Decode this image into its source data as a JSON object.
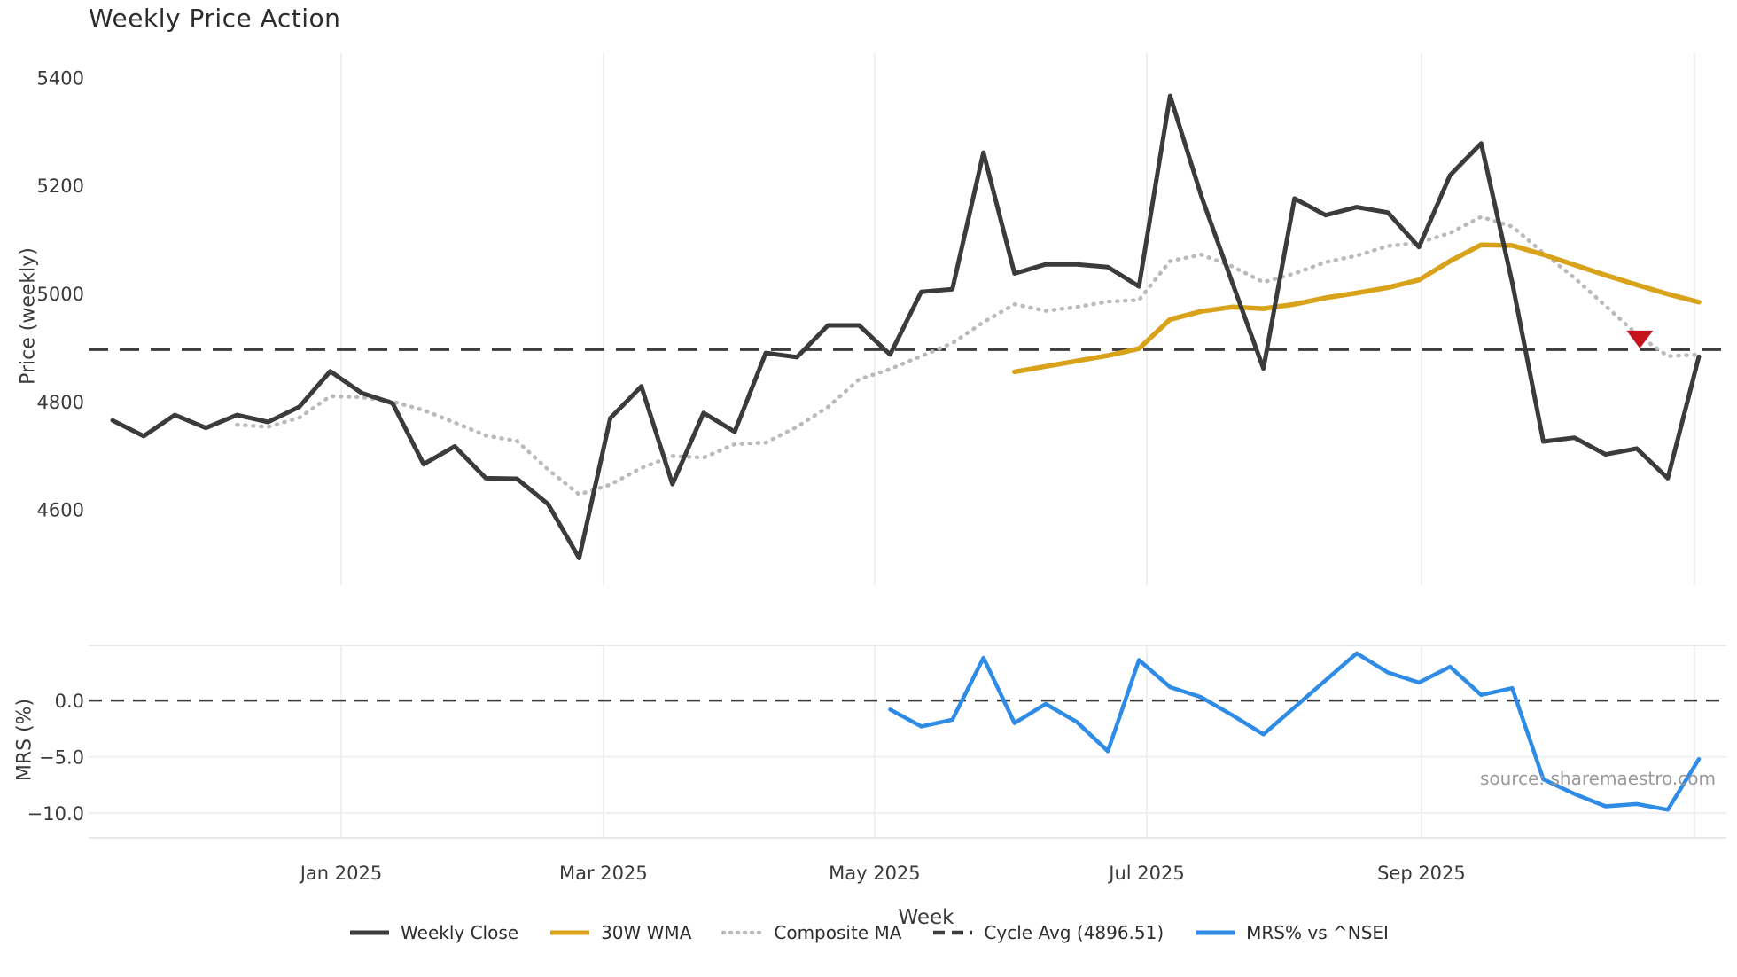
{
  "title": "Weekly Price Action",
  "axes": {
    "x_label": "Week",
    "price_y_label": "Price (weekly)",
    "mrs_y_label": "MRS (%)"
  },
  "source_credit": "source: sharemaestro.com",
  "colors": {
    "weekly_close": "#3b3b3b",
    "wma_30": "#d9a21b",
    "composite_ma": "#bababa",
    "cycle_avg": "#3d3d3d",
    "mrs_line": "#2e8be6",
    "signal_marker": "#c4151c",
    "gridline": "#f0f0f4",
    "panel_border": "#e7e7eb",
    "tick_text": "#3a3a3a",
    "muted_text": "#9a9a9a"
  },
  "legend": {
    "items": [
      {
        "label": "Weekly Close",
        "swatch": "solid",
        "color": "#3b3b3b"
      },
      {
        "label": "30W WMA",
        "swatch": "solid",
        "color": "#d9a21b"
      },
      {
        "label": "Composite MA",
        "swatch": "dotted",
        "color": "#bababa"
      },
      {
        "label": "Cycle Avg (4896.51)",
        "swatch": "dashed",
        "color": "#3d3d3d"
      },
      {
        "label": "MRS% vs ^NSEI",
        "swatch": "solid",
        "color": "#2e8be6"
      }
    ]
  },
  "chart_data": [
    {
      "type": "line",
      "panel": "price",
      "title": "Weekly Price Action",
      "xlabel": "Week",
      "ylabel": "Price (weekly)",
      "x_unit": "weekly index (Nov 2024 - Oct 2025)",
      "xtick_labels": [
        "Jan 2025",
        "Mar 2025",
        "May 2025",
        "Jul 2025",
        "Sep 2025"
      ],
      "xtick_weeks": [
        7.35,
        15.78,
        24.5,
        33.25,
        42.08
      ],
      "extra_gridline_week": 50.86,
      "ytick_values": [
        5400,
        5200,
        5000,
        4800,
        4600
      ],
      "ylim": [
        4460,
        5445
      ],
      "grid": "vertical-only",
      "legend_position": "bottom-center",
      "cycle_avg": 4896.51,
      "series": [
        {
          "name": "Weekly Close",
          "color": "#3b3b3b",
          "style": "solid",
          "values": [
            4765,
            4736,
            4775,
            4751,
            4775,
            4762,
            4790,
            4856,
            4816,
            4797,
            4684,
            4717,
            4658,
            4657,
            4610,
            4510,
            4769,
            4828,
            4647,
            4779,
            4744,
            4890,
            4882,
            4941,
            4941,
            4887,
            5003,
            5008,
            5261,
            5037,
            5054,
            5054,
            5049,
            5013,
            5366,
            5181,
            5020,
            4861,
            5176,
            5145,
            5160,
            5150,
            5086,
            5219,
            5278,
            5020,
            4726,
            4733,
            4702,
            4713,
            4658,
            4883
          ]
        },
        {
          "name": "30W WMA",
          "color": "#d9a21b",
          "style": "solid",
          "values": [
            null,
            null,
            null,
            null,
            null,
            null,
            null,
            null,
            null,
            null,
            null,
            null,
            null,
            null,
            null,
            null,
            null,
            null,
            null,
            null,
            null,
            null,
            null,
            null,
            null,
            null,
            null,
            null,
            null,
            4855,
            4865,
            4875,
            4885,
            4898,
            4952,
            4967,
            4975,
            4972,
            4980,
            4992,
            5001,
            5011,
            5025,
            5060,
            5090,
            5089,
            5072,
            5053,
            5034,
            5016,
            4999,
            4984
          ]
        },
        {
          "name": "Composite MA",
          "color": "#bababa",
          "style": "dotted",
          "values": [
            null,
            null,
            null,
            null,
            4757,
            4753,
            4770,
            4810,
            4808,
            4800,
            4784,
            4761,
            4737,
            4727,
            4674,
            4628,
            4646,
            4677,
            4699,
            4696,
            4721,
            4724,
            4753,
            4790,
            4841,
            4860,
            4884,
            4908,
            4947,
            4980,
            4968,
            4975,
            4985,
            4988,
            5060,
            5072,
            5050,
            5021,
            5037,
            5058,
            5070,
            5088,
            5094,
            5112,
            5142,
            5124,
            5075,
            5029,
            4977,
            4925,
            4884,
            4887
          ]
        }
      ],
      "signal_marker": {
        "shape": "triangle-down",
        "color": "#c4151c",
        "week": 49.1,
        "price": 4915
      }
    },
    {
      "type": "line",
      "panel": "mrs",
      "ylabel": "MRS (%)",
      "ytick_values": [
        0,
        -5,
        -10
      ],
      "ytick_labels": [
        "0.0",
        "−5.0",
        "−10.0"
      ],
      "ylim": [
        -12.2,
        4.9
      ],
      "zero_line": 0,
      "series": [
        {
          "name": "MRS% vs ^NSEI",
          "color": "#2e8be6",
          "style": "solid",
          "values": [
            null,
            null,
            null,
            null,
            null,
            null,
            null,
            null,
            null,
            null,
            null,
            null,
            null,
            null,
            null,
            null,
            null,
            null,
            null,
            null,
            null,
            null,
            null,
            null,
            null,
            -0.8,
            -2.3,
            -1.7,
            3.8,
            -2.0,
            -0.3,
            -1.9,
            -4.5,
            3.6,
            1.2,
            0.3,
            -1.3,
            -3.0,
            -0.6,
            1.8,
            4.2,
            2.5,
            1.6,
            3.0,
            0.5,
            1.1,
            -7.0,
            -8.3,
            -9.4,
            -9.2,
            -9.7,
            -5.2
          ]
        }
      ]
    }
  ]
}
